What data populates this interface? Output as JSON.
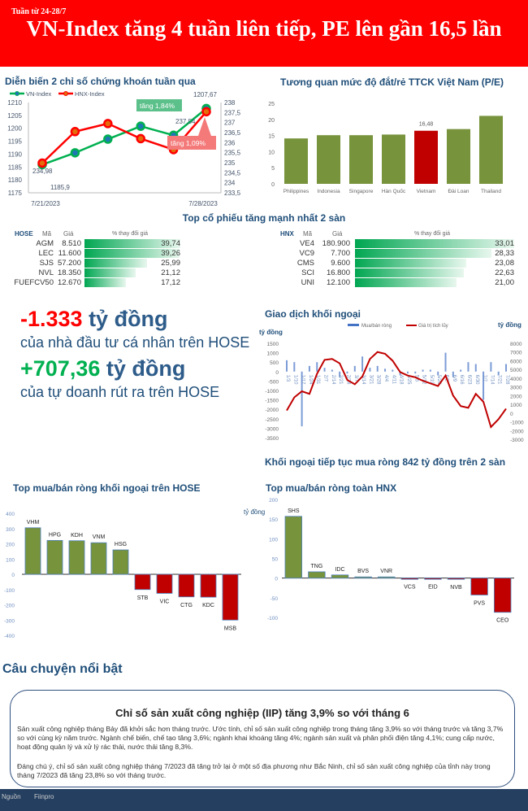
{
  "header": {
    "week": "Tuần từ 24-28/7",
    "title": "VN-Index tăng 4 tuần liên tiếp, PE lên gần 16,5 lần",
    "bg": "#ff0000"
  },
  "highlights": {
    "individual_value": "-1.333",
    "individual_unit": " tỷ đồng",
    "individual_desc": "của nhà đầu tư cá nhân trên HOSE",
    "prop_value": "+707,36",
    "prop_unit": " tỷ đồng",
    "prop_desc": "của tự doanh rút ra trên HOSE"
  },
  "top_gainers": {
    "title": "Top cổ phiếu tăng mạnh nhất 2 sàn",
    "hose": {
      "exchange": "HOSE",
      "col_code": "Mã",
      "col_price": "Giá",
      "col_change": "% thay đổi giá",
      "rows": [
        {
          "code": "AGM",
          "price": "8.510",
          "change": 39.74,
          "change_label": "39,74"
        },
        {
          "code": "LEC",
          "price": "11.600",
          "change": 39.26,
          "change_label": "39,26"
        },
        {
          "code": "SJS",
          "price": "57.200",
          "change": 25.99,
          "change_label": "25,99"
        },
        {
          "code": "NVL",
          "price": "18.350",
          "change": 21.12,
          "change_label": "21,12"
        },
        {
          "code": "FUEFCV50",
          "price": "12.670",
          "change": 17.12,
          "change_label": "17,12"
        }
      ]
    },
    "hnx": {
      "exchange": "HNX",
      "col_code": "Mã",
      "col_price": "Giá",
      "col_change": "% thay đổi giá",
      "rows": [
        {
          "code": "VE4",
          "price": "180.900",
          "change": 33.01,
          "change_label": "33,01"
        },
        {
          "code": "VC9",
          "price": "7.700",
          "change": 28.33,
          "change_label": "28,33"
        },
        {
          "code": "CMS",
          "price": "9.600",
          "change": 23.08,
          "change_label": "23,08"
        },
        {
          "code": "SCI",
          "price": "16.800",
          "change": 22.63,
          "change_label": "22,63"
        },
        {
          "code": "UNI",
          "price": "12.100",
          "change": 21.0,
          "change_label": "21,00"
        }
      ]
    }
  },
  "foreign_headline": "Khối ngoại tiếp tục mua ròng 842 tỷ đồng trên 2 sàn",
  "chart_data": [
    {
      "type": "line",
      "title": "Diễn biến 2 chỉ số chứng khoán tuần qua",
      "x_tick_labels": [
        "7/21/2023",
        "7/28/2023"
      ],
      "series": [
        {
          "name": "VN-Index",
          "axis": "left",
          "color": "#00b050",
          "values": [
            1185.9,
            1190.5,
            1195.8,
            1200.8,
            1197.3,
            1207.67
          ]
        },
        {
          "name": "HNX-Index",
          "axis": "right",
          "color": "#ff0000",
          "values": [
            234.98,
            236.55,
            236.95,
            236.2,
            235.65,
            237.54
          ]
        }
      ],
      "ylim": [
        1175,
        1210
      ],
      "y_ticks": [
        "1175",
        "1180",
        "1185",
        "1190",
        "1195",
        "1200",
        "1205",
        "1210"
      ],
      "y2lim": [
        233.5,
        238
      ],
      "y2_ticks": [
        "233,5",
        "234",
        "234,5",
        "235",
        "235,5",
        "236",
        "236,5",
        "237",
        "237,5",
        "238"
      ],
      "data_labels": {
        "vn_first": "1185,9",
        "vn_last": "1207,67",
        "hnx_first": "234,98",
        "hnx_last": "237,54"
      },
      "annotations": {
        "vn": "tăng 1,84%",
        "hnx": "tăng 1,09%"
      },
      "legend": "top-left"
    },
    {
      "type": "bar",
      "title": "Tương quan mức độ đắt/rẻ TTCK Việt Nam (P/E)",
      "categories": [
        "Philippines",
        "Indonesia",
        "Singapore",
        "Hàn Quốc",
        "Vietnam",
        "Đài Loan",
        "Thailand"
      ],
      "values": [
        14.1,
        15.1,
        15.1,
        15.3,
        16.48,
        17.0,
        21.1
      ],
      "highlight": "Vietnam",
      "highlight_label": "16,48",
      "ylim": [
        0,
        25
      ],
      "y_ticks": [
        "0",
        "5",
        "10",
        "15",
        "20",
        "25"
      ],
      "colors": {
        "default": "#77933c",
        "highlight": "#c00000"
      }
    },
    {
      "type": "bar+line",
      "title": "Giao dịch khối ngoại",
      "ylabel": "tỷ đồng",
      "y2label": "tỷ đồng",
      "legend": [
        "Mua/bán ròng",
        "Giá trị tích lũy"
      ],
      "legend_placement": "top",
      "categories": [
        "1/3",
        "1/10",
        "1/17",
        "1/24",
        "1/31",
        "2/7",
        "2/14",
        "2/21",
        "2/28",
        "3/7",
        "3/14",
        "3/21",
        "3/28",
        "4/4",
        "4/11",
        "4/18",
        "4/25",
        "5/5",
        "5/12",
        "5/19",
        "5/26",
        "6/2",
        "6/9",
        "6/16",
        "6/23",
        "6/30",
        "7/7",
        "7/14",
        "7/21",
        "7/28"
      ],
      "net": [
        600,
        500,
        -2900,
        300,
        500,
        200,
        100,
        -300,
        -100,
        300,
        800,
        200,
        300,
        150,
        100,
        -200,
        -100,
        -100,
        100,
        100,
        -200,
        1000,
        -300,
        100,
        500,
        400,
        -1500,
        500,
        -200,
        400
      ],
      "cumulative": [
        300,
        1800,
        2500,
        2200,
        4500,
        6100,
        6200,
        5700,
        3800,
        3300,
        4200,
        6200,
        7000,
        6800,
        6000,
        4700,
        4300,
        4100,
        3700,
        3400,
        3100,
        4300,
        2000,
        800,
        600,
        2200,
        1300,
        -1600,
        -700,
        500
      ],
      "ylim": [
        -3500,
        1500
      ],
      "y_ticks": [
        "-3500",
        "-3000",
        "-2500",
        "-2000",
        "-1500",
        "-1000",
        "-500",
        "0",
        "500",
        "1000",
        "1500"
      ],
      "y2lim": [
        -3000,
        8000
      ],
      "y2_ticks": [
        "-3000",
        "-2000",
        "-1000",
        "0",
        "1000",
        "2000",
        "3000",
        "4000",
        "5000",
        "6000",
        "7000",
        "8000"
      ],
      "colors": {
        "net": "#4472c4",
        "cumulative": "#c00000"
      }
    },
    {
      "type": "bar",
      "title": "Top mua/bán ròng khối ngoại trên HOSE",
      "categories": [
        "VHM",
        "HPG",
        "KDH",
        "VNM",
        "HSG",
        "STB",
        "VIC",
        "CTG",
        "KDC",
        "MSB"
      ],
      "values": [
        305,
        222,
        220,
        207,
        160,
        -100,
        -125,
        -148,
        -150,
        -300
      ],
      "ylim": [
        -400,
        400
      ],
      "y_ticks": [
        "-400",
        "-300",
        "-200",
        "-100",
        "0",
        "100",
        "200",
        "300",
        "400"
      ],
      "colors": {
        "positive": "#77933c",
        "negative": "#c00000"
      }
    },
    {
      "type": "bar",
      "title": "Top mua/bán ròng toàn HNX",
      "ylabel": "tỷ đồng",
      "categories": [
        "SHS",
        "TNG",
        "IDC",
        "BVS",
        "VNR",
        "VCS",
        "EID",
        "NVB",
        "PVS",
        "CEO"
      ],
      "values": [
        157,
        16,
        8,
        3,
        3,
        -2,
        -2,
        -3,
        -43,
        -87
      ],
      "ylim": [
        -100,
        200
      ],
      "y_ticks": [
        "-100",
        "-50",
        "0",
        "50",
        "100",
        "150",
        "200"
      ],
      "colors": {
        "positive": "#77933c",
        "negative": "#c00000"
      }
    }
  ],
  "story": {
    "section": "Câu chuyện nổi bật",
    "title": "Chỉ số sản xuất công nghiệp (IIP) tăng 3,9% so với tháng 6",
    "p1": "Sản xuất công nghiệp tháng Bảy đã khởi sắc hơn tháng trước. Ước tính, chỉ số sản xuất công nghiệp trong tháng tăng 3,9% so với tháng trước và tăng 3,7% so với cùng kỳ năm trước. Ngành chế biến, chế tạo tăng 3,6%; ngành khai khoáng tăng 4%; ngành sản xuất và phân phối điện tăng 4,1%; cung cấp nước, hoạt động quản lý và xử lý rác thải, nước thải tăng 8,3%.",
    "p2": "Đáng chú ý, chỉ số sản xuất công nghiệp tháng 7/2023 đã tăng trở lại ở một số địa phương như Bắc Ninh, chỉ số sản xuất công nghiệp của tỉnh này trong tháng 7/2023 đã tăng 23,8% so với tháng trước."
  },
  "footer": {
    "source_label": "Nguồn",
    "source": "Fiinpro",
    "bg": "#243f60"
  }
}
